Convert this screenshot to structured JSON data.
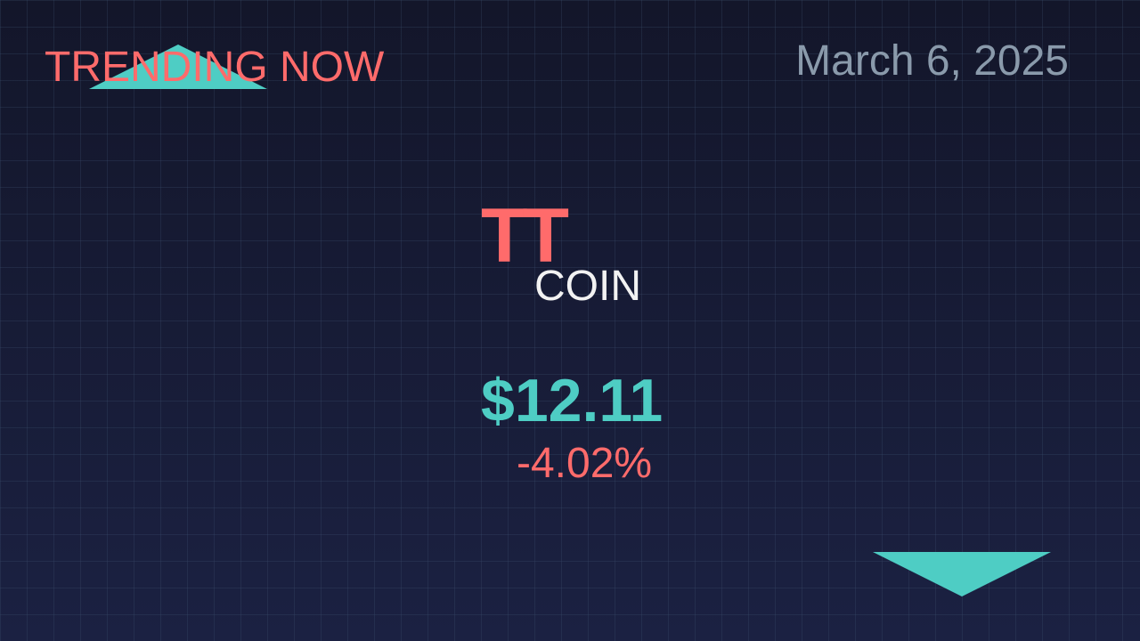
{
  "header": {
    "trending_label": "TRENDING NOW",
    "date": "March 6, 2025"
  },
  "coin": {
    "symbol": "TT",
    "name": "COIN",
    "price": "$12.11",
    "change": "-4.02%"
  },
  "colors": {
    "accent_red": "#ff6b6b",
    "accent_teal": "#4ecdc4",
    "date_gray": "#8a9aab",
    "text_white": "#f2f2f2",
    "background_top": "#13162a",
    "background_bottom": "#1b2142"
  },
  "decorations": {
    "top_left_shape": "up-triangle",
    "bottom_right_shape": "down-triangle"
  }
}
